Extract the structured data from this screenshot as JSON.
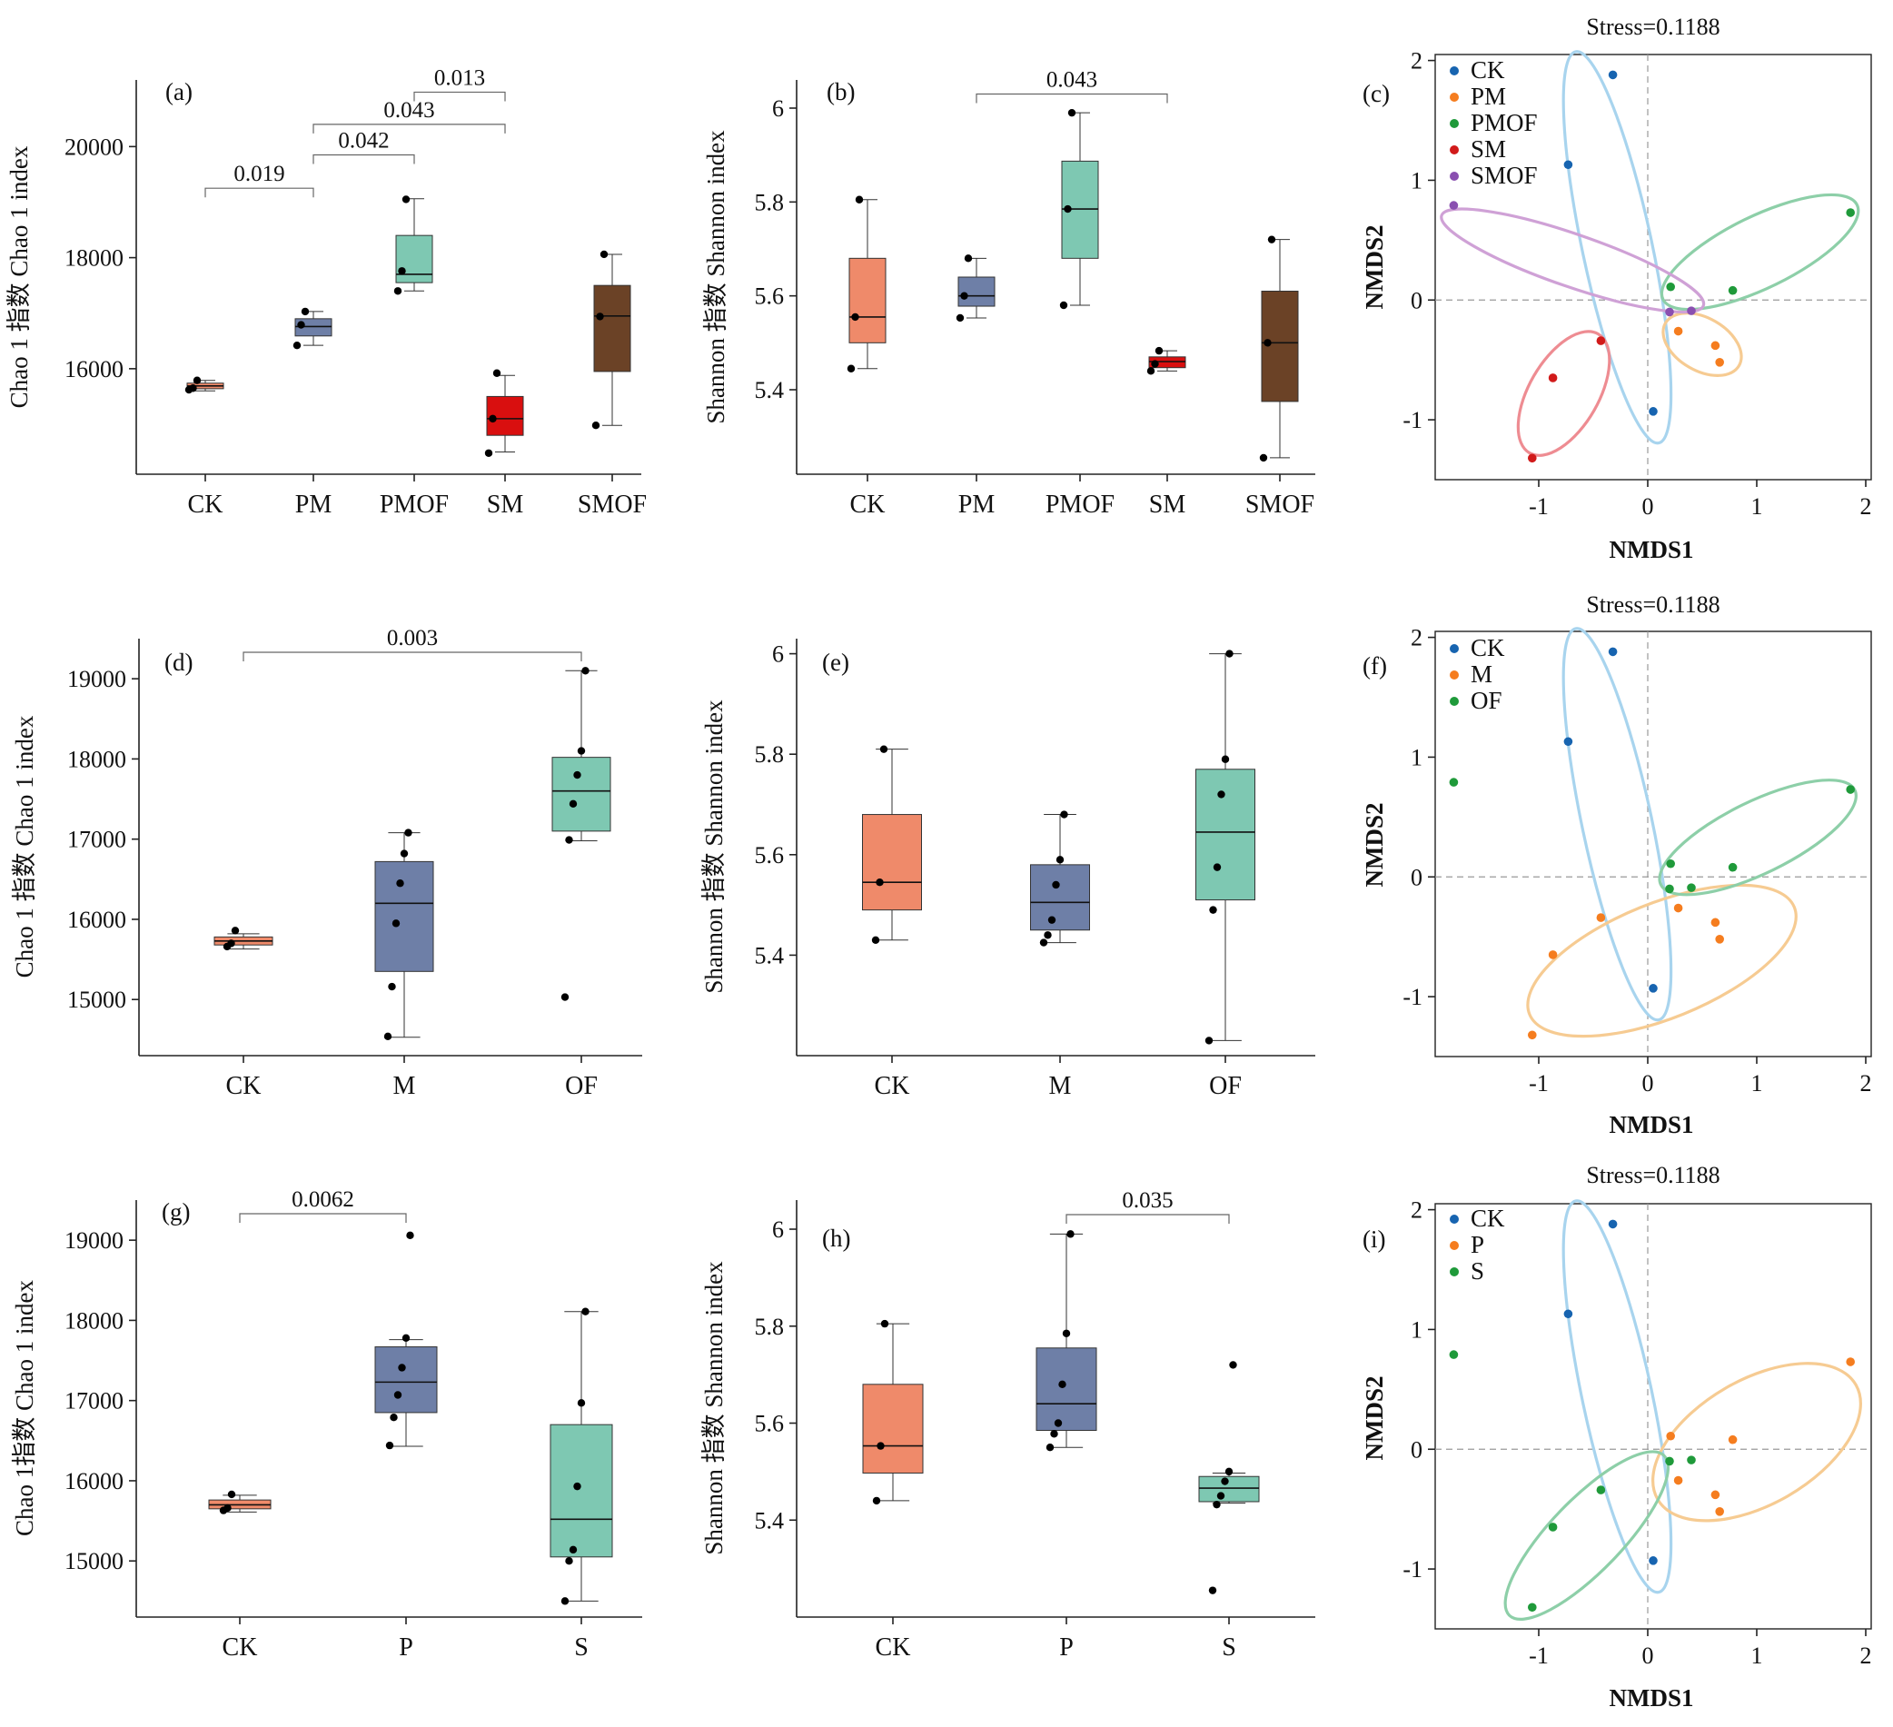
{
  "figure": {
    "colors": {
      "CK": "#ef8a6a",
      "PM": "#6e7fa7",
      "PMOF": "#7ec8b2",
      "SM": "#d90f0f",
      "SMOF": "#6b4226",
      "M": "#6e7fa7",
      "OF": "#7ec8b2",
      "P": "#6e7fa7",
      "S": "#7ec8b2",
      "nmds_CK": "#1764b0",
      "nmds_PM": "#f57d1f",
      "nmds_PMOF": "#1f9a3a",
      "nmds_SM": "#d11a1a",
      "nmds_SMOF": "#8a4fb0",
      "ell_CK": "#a8d4ee",
      "ell_PM": "#f6cb92",
      "ell_PMOF": "#8dcfa8",
      "ell_SM": "#ee8c92",
      "ell_SMOF": "#cfa1d6"
    }
  },
  "chart_data": [
    {
      "id": "a",
      "type": "box",
      "panel_label": "(a)",
      "ylabel": "Chao 1 指数 Chao 1 index",
      "categories": [
        "CK",
        "PM",
        "PMOF",
        "SM",
        "SMOF"
      ],
      "ylim": [
        14100,
        21200
      ],
      "yticks": [
        16000,
        18000,
        20000
      ],
      "boxes": [
        {
          "q1": 15640,
          "median": 15690,
          "q3": 15740,
          "min": 15600,
          "max": 15790
        },
        {
          "q1": 16590,
          "median": 16760,
          "q3": 16900,
          "min": 16420,
          "max": 17030
        },
        {
          "q1": 17550,
          "median": 17700,
          "q3": 18400,
          "min": 17400,
          "max": 19060
        },
        {
          "q1": 14800,
          "median": 15100,
          "q3": 15500,
          "min": 14500,
          "max": 15880
        },
        {
          "q1": 15950,
          "median": 16950,
          "q3": 17500,
          "min": 14980,
          "max": 18060
        }
      ],
      "points": [
        [
          15620,
          15650,
          15790
        ],
        [
          16420,
          16790,
          17030
        ],
        [
          17400,
          17760,
          19050
        ],
        [
          14480,
          15100,
          15920
        ],
        [
          14980,
          16940,
          18060
        ]
      ],
      "brackets": [
        {
          "from": 0,
          "to": 1,
          "label": "0.019",
          "y": 19250
        },
        {
          "from": 1,
          "to": 2,
          "label": "0.042",
          "y": 19850
        },
        {
          "from": 1,
          "to": 3,
          "label": "0.043",
          "y": 20400
        },
        {
          "from": 2,
          "to": 3,
          "label": "0.013",
          "y": 20980
        }
      ]
    },
    {
      "id": "b",
      "type": "box",
      "panel_label": "(b)",
      "ylabel": "Shannon 指数 Shannon index",
      "categories": [
        "CK",
        "PM",
        "PMOF",
        "SM",
        "SMOF"
      ],
      "ylim": [
        5.22,
        6.06
      ],
      "yticks": [
        5.4,
        5.6,
        5.8,
        6.0
      ],
      "boxes": [
        {
          "q1": 5.5,
          "median": 5.555,
          "q3": 5.68,
          "min": 5.445,
          "max": 5.805
        },
        {
          "q1": 5.578,
          "median": 5.6,
          "q3": 5.64,
          "min": 5.553,
          "max": 5.68
        },
        {
          "q1": 5.68,
          "median": 5.785,
          "q3": 5.887,
          "min": 5.58,
          "max": 5.99
        },
        {
          "q1": 5.447,
          "median": 5.46,
          "q3": 5.47,
          "min": 5.44,
          "max": 5.483
        },
        {
          "q1": 5.375,
          "median": 5.5,
          "q3": 5.61,
          "min": 5.255,
          "max": 5.72
        }
      ],
      "points": [
        [
          5.445,
          5.555,
          5.805
        ],
        [
          5.553,
          5.6,
          5.68
        ],
        [
          5.58,
          5.785,
          5.99
        ],
        [
          5.44,
          5.455,
          5.483
        ],
        [
          5.255,
          5.5,
          5.72
        ]
      ],
      "brackets": [
        {
          "from": 1,
          "to": 3,
          "label": "0.043",
          "y": 6.03
        }
      ]
    },
    {
      "id": "c",
      "type": "scatter",
      "panel_label": "(c)",
      "title": "Stress=0.1188",
      "xlabel": "NMDS1",
      "ylabel": "NMDS2",
      "xlim": [
        -1.95,
        2.05
      ],
      "ylim": [
        -1.5,
        2.05
      ],
      "xticks": [
        -1,
        0,
        1,
        2
      ],
      "yticks": [
        -1,
        0,
        1,
        2
      ],
      "legend": [
        "CK",
        "PM",
        "PMOF",
        "SM",
        "SMOF"
      ],
      "series": [
        {
          "name": "CK",
          "color": "nmds_CK",
          "points": [
            [
              -0.32,
              1.88
            ],
            [
              -0.73,
              1.13
            ],
            [
              0.05,
              -0.93
            ]
          ]
        },
        {
          "name": "PM",
          "color": "nmds_PM",
          "points": [
            [
              0.28,
              -0.26
            ],
            [
              0.62,
              -0.38
            ],
            [
              0.66,
              -0.52
            ]
          ]
        },
        {
          "name": "PMOF",
          "color": "nmds_PMOF",
          "points": [
            [
              1.86,
              0.73
            ],
            [
              0.78,
              0.08
            ],
            [
              0.21,
              0.11
            ]
          ]
        },
        {
          "name": "SM",
          "color": "nmds_SM",
          "points": [
            [
              -1.06,
              -1.32
            ],
            [
              -0.87,
              -0.65
            ],
            [
              -0.43,
              -0.34
            ]
          ]
        },
        {
          "name": "SMOF",
          "color": "nmds_SMOF",
          "points": [
            [
              -1.78,
              0.79
            ],
            [
              0.2,
              -0.1
            ],
            [
              0.4,
              -0.09
            ]
          ]
        }
      ],
      "ellipses": [
        {
          "color": "ell_CK",
          "center": [
            -0.28,
            0.44
          ],
          "semi_axes": [
            0.32,
            1.67
          ],
          "angle": 12
        },
        {
          "color": "ell_PM",
          "center": [
            0.5,
            -0.37
          ],
          "semi_axes": [
            0.39,
            0.22
          ],
          "angle": -30
        },
        {
          "color": "ell_PMOF",
          "center": [
            1.03,
            0.4
          ],
          "semi_axes": [
            0.99,
            0.3
          ],
          "angle": 26
        },
        {
          "color": "ell_SM",
          "center": [
            -0.77,
            -0.78
          ],
          "semi_axes": [
            0.63,
            0.29
          ],
          "angle": 60
        },
        {
          "color": "ell_SMOF",
          "center": [
            -0.69,
            0.33
          ],
          "semi_axes": [
            1.27,
            0.22
          ],
          "angle": -19
        }
      ]
    },
    {
      "id": "d",
      "type": "box",
      "panel_label": "(d)",
      "ylabel": "Chao 1 指数 Chao 1 index",
      "categories": [
        "CK",
        "M",
        "OF"
      ],
      "ylim": [
        14300,
        19500
      ],
      "yticks": [
        15000,
        16000,
        17000,
        18000,
        19000
      ],
      "boxes": [
        {
          "q1": 15680,
          "median": 15730,
          "q3": 15780,
          "min": 15630,
          "max": 15820
        },
        {
          "q1": 15350,
          "median": 16200,
          "q3": 16720,
          "min": 14530,
          "max": 17080
        },
        {
          "q1": 17100,
          "median": 17600,
          "q3": 18020,
          "min": 16980,
          "max": 19100
        }
      ],
      "points": [
        [
          15660,
          15700,
          15860
        ],
        [
          14540,
          15160,
          15950,
          16450,
          16820,
          17080
        ],
        [
          15030,
          16990,
          17440,
          17800,
          18100,
          19100
        ]
      ],
      "brackets": [
        {
          "from": 0,
          "to": 2,
          "label": "0.003",
          "y": 19330
        }
      ]
    },
    {
      "id": "e",
      "type": "box",
      "panel_label": "(e)",
      "ylabel": "Shannon 指数 Shannon index",
      "categories": [
        "CK",
        "M",
        "OF"
      ],
      "ylim": [
        5.2,
        6.03
      ],
      "yticks": [
        5.4,
        5.6,
        5.8,
        6.0
      ],
      "boxes": [
        {
          "q1": 5.49,
          "median": 5.545,
          "q3": 5.68,
          "min": 5.43,
          "max": 5.81
        },
        {
          "q1": 5.45,
          "median": 5.505,
          "q3": 5.58,
          "min": 5.425,
          "max": 5.68
        },
        {
          "q1": 5.51,
          "median": 5.645,
          "q3": 5.77,
          "min": 5.23,
          "max": 6.0
        }
      ],
      "points": [
        [
          5.43,
          5.545,
          5.81
        ],
        [
          5.425,
          5.44,
          5.47,
          5.54,
          5.59,
          5.68
        ],
        [
          5.23,
          5.49,
          5.575,
          5.72,
          5.79,
          6.0
        ]
      ],
      "brackets": []
    },
    {
      "id": "f",
      "type": "scatter",
      "panel_label": "(f)",
      "title": "Stress=0.1188",
      "xlabel": "NMDS1",
      "ylabel": "NMDS2",
      "xlim": [
        -1.95,
        2.05
      ],
      "ylim": [
        -1.5,
        2.05
      ],
      "xticks": [
        -1,
        0,
        1,
        2
      ],
      "yticks": [
        -1,
        0,
        1,
        2
      ],
      "legend": [
        "CK",
        "M",
        "OF"
      ],
      "series": [
        {
          "name": "CK",
          "color": "nmds_CK",
          "points": [
            [
              -0.32,
              1.88
            ],
            [
              -0.73,
              1.13
            ],
            [
              0.05,
              -0.93
            ]
          ]
        },
        {
          "name": "M",
          "color": "nmds_PM",
          "points": [
            [
              0.28,
              -0.26
            ],
            [
              0.62,
              -0.38
            ],
            [
              0.66,
              -0.52
            ],
            [
              -1.06,
              -1.32
            ],
            [
              -0.87,
              -0.65
            ],
            [
              -0.43,
              -0.34
            ]
          ]
        },
        {
          "name": "OF",
          "color": "nmds_PMOF",
          "points": [
            [
              1.86,
              0.73
            ],
            [
              0.78,
              0.08
            ],
            [
              0.21,
              0.11
            ],
            [
              -1.78,
              0.79
            ],
            [
              0.2,
              -0.1
            ],
            [
              0.4,
              -0.09
            ]
          ]
        }
      ],
      "ellipses": [
        {
          "color": "ell_CK",
          "center": [
            -0.28,
            0.44
          ],
          "semi_axes": [
            0.32,
            1.67
          ],
          "angle": 12
        },
        {
          "color": "ell_PM",
          "center": [
            0.13,
            -0.7
          ],
          "semi_axes": [
            1.31,
            0.48
          ],
          "angle": 22
        },
        {
          "color": "ell_PMOF",
          "center": [
            1.01,
            0.33
          ],
          "semi_axes": [
            0.99,
            0.3
          ],
          "angle": 26
        }
      ]
    },
    {
      "id": "g",
      "type": "box",
      "panel_label": "(g)",
      "ylabel": "Chao 1指数 Chao 1 index",
      "categories": [
        "CK",
        "P",
        "S"
      ],
      "ylim": [
        14300,
        19500
      ],
      "yticks": [
        15000,
        16000,
        17000,
        18000,
        19000
      ],
      "boxes": [
        {
          "q1": 15650,
          "median": 15700,
          "q3": 15760,
          "min": 15610,
          "max": 15820
        },
        {
          "q1": 16850,
          "median": 17230,
          "q3": 17670,
          "min": 16430,
          "max": 17760
        },
        {
          "q1": 15050,
          "median": 15520,
          "q3": 16700,
          "min": 14500,
          "max": 18110
        }
      ],
      "points": [
        [
          15630,
          15660,
          15830
        ],
        [
          16440,
          16790,
          17070,
          17410,
          17780,
          19060
        ],
        [
          14500,
          15000,
          15140,
          15930,
          16970,
          18110
        ]
      ],
      "brackets": [
        {
          "from": 0,
          "to": 1,
          "label": "0.0062",
          "y": 19330
        }
      ]
    },
    {
      "id": "h",
      "type": "box",
      "panel_label": "(h)",
      "ylabel": "Shannon 指数 Shannon index",
      "categories": [
        "CK",
        "P",
        "S"
      ],
      "ylim": [
        5.2,
        6.06
      ],
      "yticks": [
        5.4,
        5.6,
        5.8,
        6.0
      ],
      "boxes": [
        {
          "q1": 5.497,
          "median": 5.553,
          "q3": 5.68,
          "min": 5.44,
          "max": 5.805
        },
        {
          "q1": 5.585,
          "median": 5.64,
          "q3": 5.755,
          "min": 5.55,
          "max": 5.99
        },
        {
          "q1": 5.438,
          "median": 5.466,
          "q3": 5.49,
          "min": 5.435,
          "max": 5.497
        }
      ],
      "points": [
        [
          5.44,
          5.553,
          5.805
        ],
        [
          5.55,
          5.578,
          5.6,
          5.68,
          5.785,
          5.99
        ],
        [
          5.255,
          5.432,
          5.45,
          5.48,
          5.5,
          5.72
        ]
      ],
      "brackets": [
        {
          "from": 1,
          "to": 2,
          "label": "0.035",
          "y": 6.03
        }
      ]
    },
    {
      "id": "i",
      "type": "scatter",
      "panel_label": "(i)",
      "title": "Stress=0.1188",
      "xlabel": "NMDS1",
      "ylabel": "NMDS2",
      "xlim": [
        -1.95,
        2.05
      ],
      "ylim": [
        -1.5,
        2.05
      ],
      "xticks": [
        -1,
        0,
        1,
        2
      ],
      "yticks": [
        -1,
        0,
        1,
        2
      ],
      "legend": [
        "CK",
        "P",
        "S"
      ],
      "series": [
        {
          "name": "CK",
          "color": "nmds_CK",
          "points": [
            [
              -0.32,
              1.88
            ],
            [
              -0.73,
              1.13
            ],
            [
              0.05,
              -0.93
            ]
          ]
        },
        {
          "name": "P",
          "color": "nmds_PM",
          "points": [
            [
              0.28,
              -0.26
            ],
            [
              0.62,
              -0.38
            ],
            [
              0.66,
              -0.52
            ],
            [
              1.86,
              0.73
            ],
            [
              0.78,
              0.08
            ],
            [
              0.21,
              0.11
            ]
          ]
        },
        {
          "name": "S",
          "color": "nmds_PMOF",
          "points": [
            [
              -1.06,
              -1.32
            ],
            [
              -0.87,
              -0.65
            ],
            [
              -0.43,
              -0.34
            ],
            [
              -1.78,
              0.79
            ],
            [
              0.2,
              -0.1
            ],
            [
              0.4,
              -0.09
            ]
          ]
        }
      ],
      "ellipses": [
        {
          "color": "ell_CK",
          "center": [
            -0.28,
            0.44
          ],
          "semi_axes": [
            0.32,
            1.67
          ],
          "angle": 12
        },
        {
          "color": "ell_PM",
          "center": [
            1.0,
            0.06
          ],
          "semi_axes": [
            1.05,
            0.52
          ],
          "angle": 30
        },
        {
          "color": "ell_PMOF",
          "center": [
            -0.56,
            -0.72
          ],
          "semi_axes": [
            1.02,
            0.3
          ],
          "angle": 46
        }
      ]
    }
  ]
}
